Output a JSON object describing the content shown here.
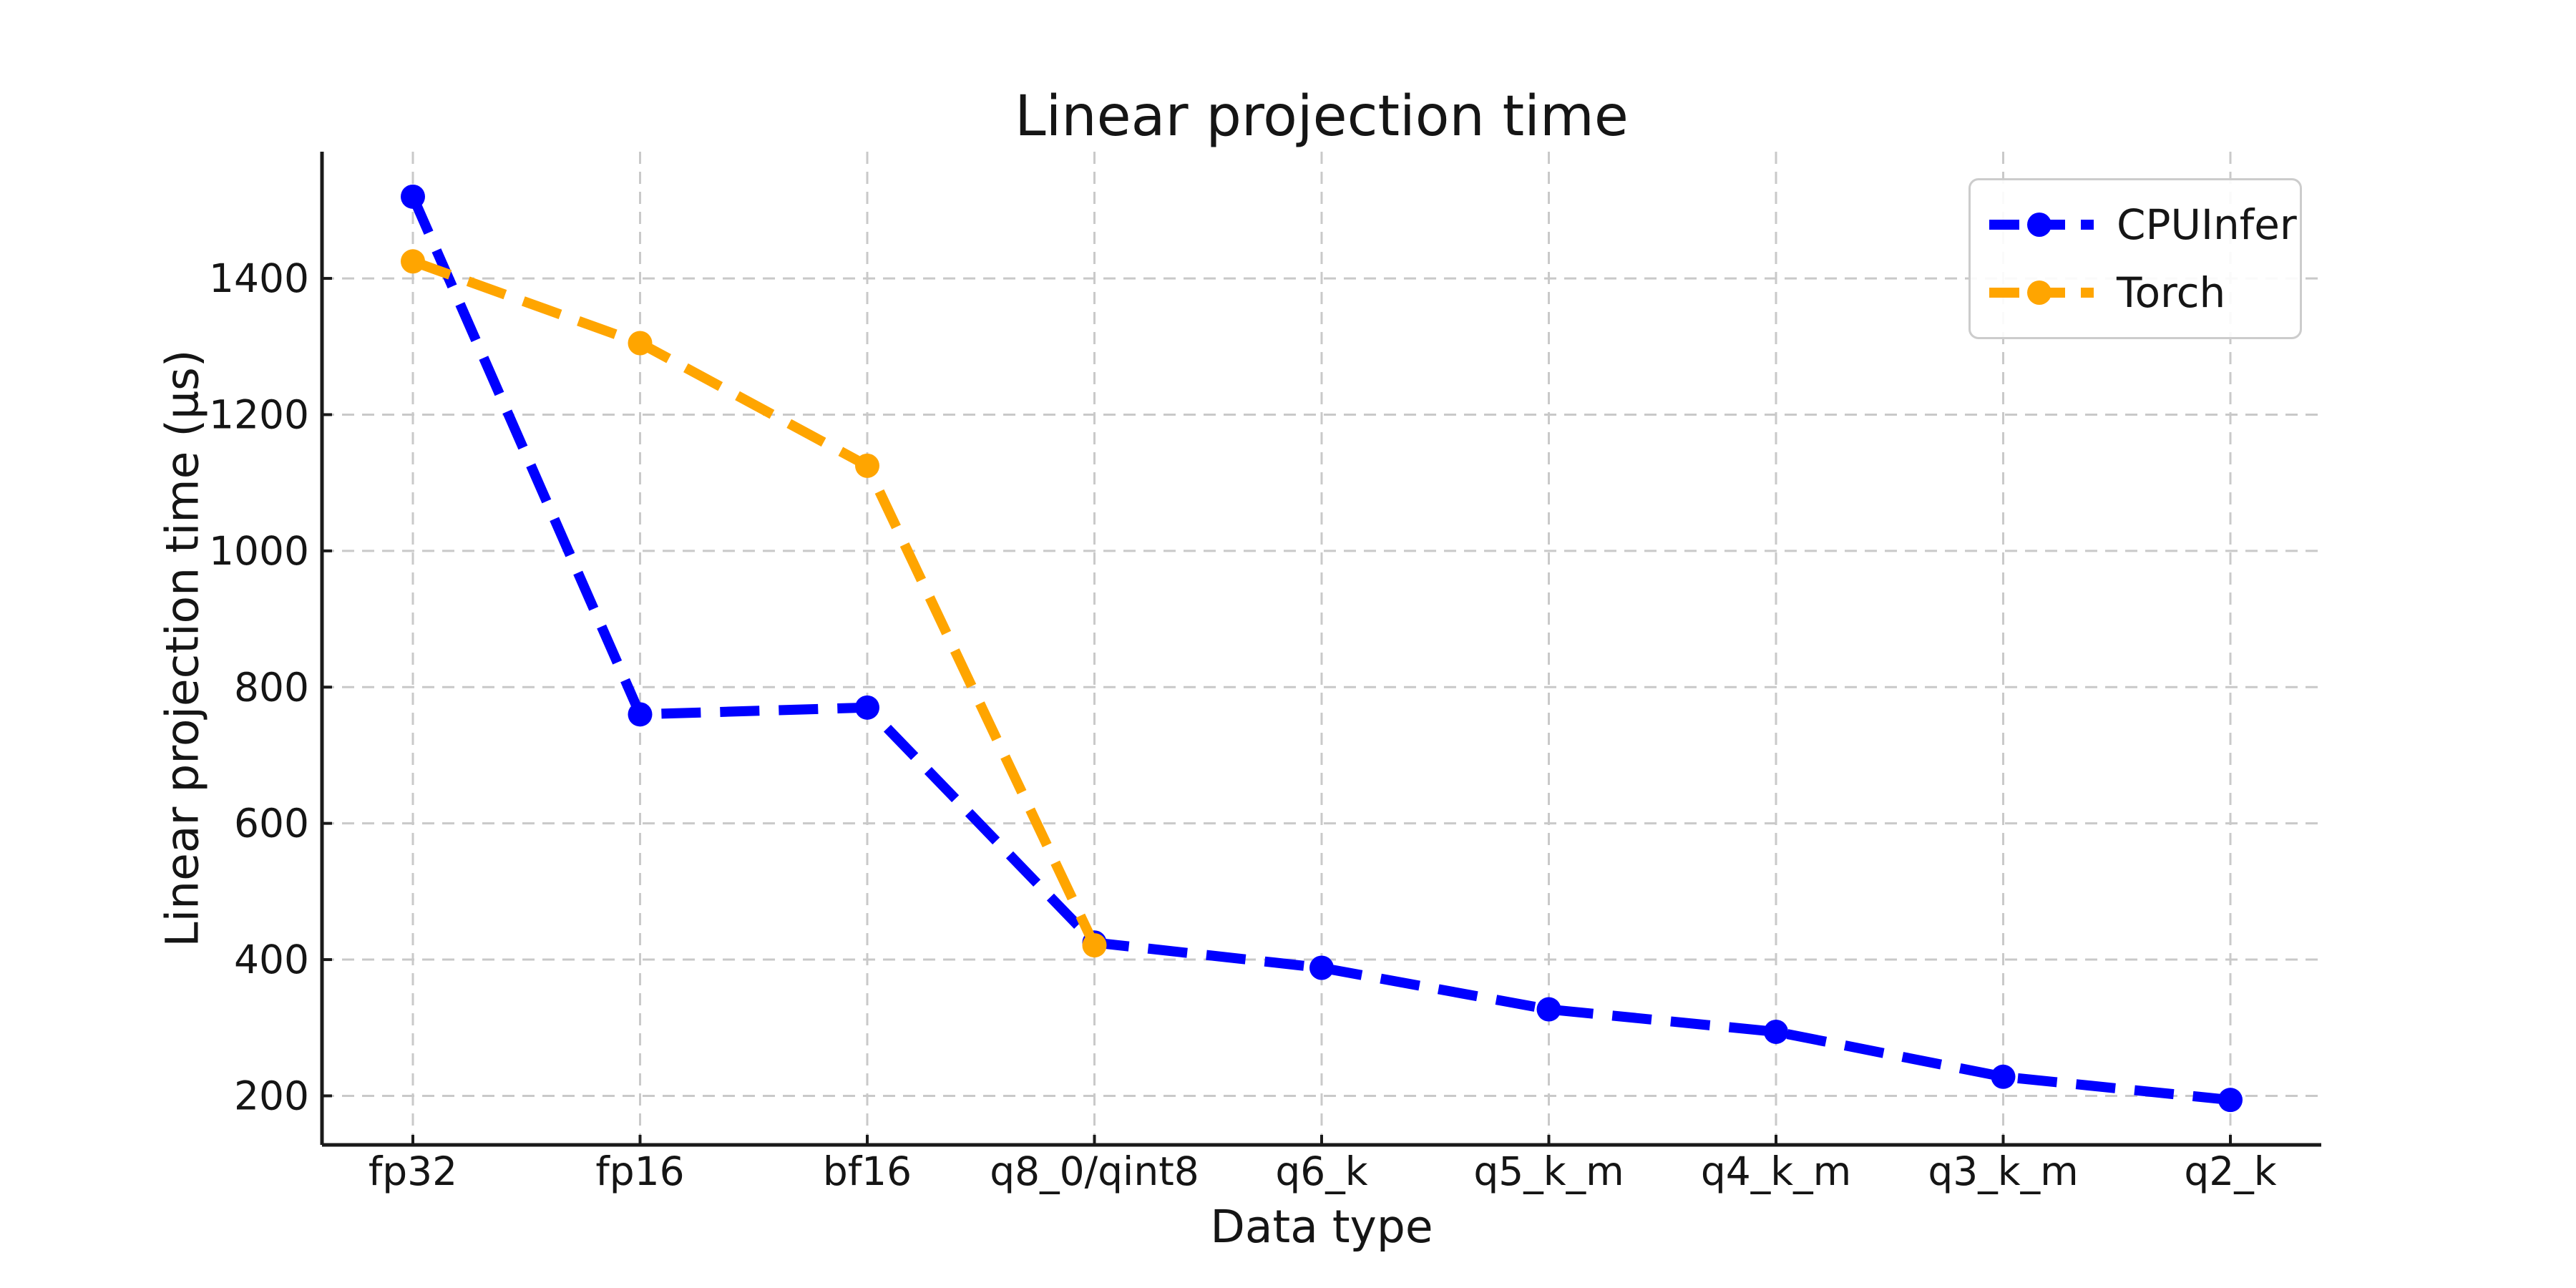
{
  "figure": {
    "background": "#ffffff"
  },
  "chart_data": {
    "type": "line",
    "title": "Linear projection time",
    "xlabel": "Data type",
    "ylabel": "Linear projection time (µs)",
    "categories": [
      "fp32",
      "fp16",
      "bf16",
      "q8_0/qint8",
      "q6_k",
      "q5_k_m",
      "q4_k_m",
      "q3_k_m",
      "q2_k"
    ],
    "series": [
      {
        "name": "CPUInfer",
        "color": "#0000ff",
        "line_style": "dashed",
        "marker": "circle",
        "values": [
          1520,
          760,
          770,
          425,
          388,
          327,
          294,
          228,
          194
        ]
      },
      {
        "name": "Torch",
        "color": "#ffa500",
        "line_style": "dashed",
        "marker": "circle",
        "values": [
          1425,
          1305,
          1125,
          421,
          null,
          null,
          null,
          null,
          null
        ]
      }
    ],
    "yticks": [
      200,
      400,
      600,
      800,
      1000,
      1200,
      1400
    ],
    "ylim": [
      128,
      1586
    ],
    "xlim": [
      -0.4,
      8.4
    ],
    "grid": true,
    "grid_style": "dashed",
    "legend_position": "upper right",
    "axis_color": "#1a1a1a",
    "grid_color": "#c9c9c9",
    "text_color": "#151515"
  }
}
